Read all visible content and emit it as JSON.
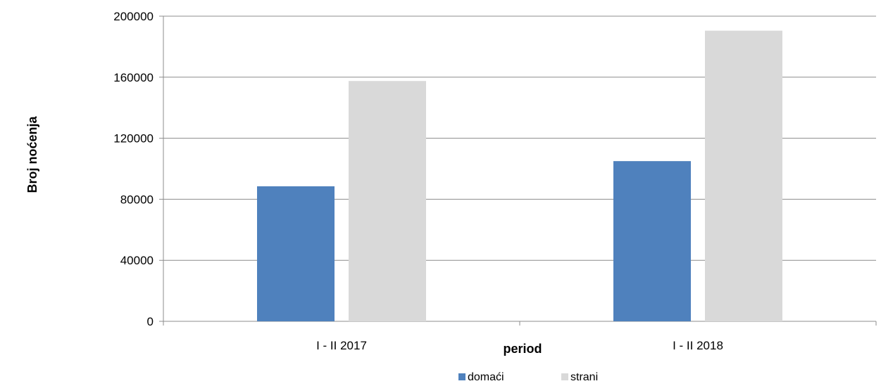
{
  "chart_data": {
    "type": "bar",
    "title": "",
    "xlabel": "period",
    "ylabel": "Broj noćenja",
    "categories": [
      "I - II 2017",
      "I - II 2018"
    ],
    "series": [
      {
        "name": "domaći",
        "color": "#4f81bd",
        "values": [
          88500,
          105000
        ]
      },
      {
        "name": "strani",
        "color": "#d9d9d9",
        "values": [
          157500,
          190500
        ]
      }
    ],
    "ylim": [
      0,
      200000
    ],
    "yticks": [
      0,
      40000,
      80000,
      120000,
      160000,
      200000
    ],
    "grid": true,
    "legend_position": "bottom"
  }
}
